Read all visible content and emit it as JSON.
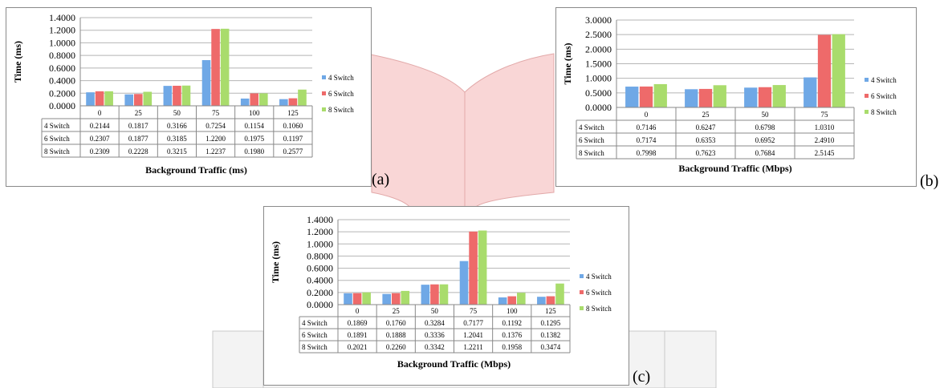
{
  "colors": {
    "4 Switch": "#6fa8e6",
    "6 Switch": "#ee6a6a",
    "8 Switch": "#a9dc6c",
    "grid": "#b5b5b5",
    "connector": "#f9d6d6"
  },
  "panel_labels": {
    "a": "(a)",
    "b": "(b)",
    "c": "(c)"
  },
  "chart_data": [
    {
      "id": "a",
      "type": "bar",
      "ylabel": "Time (ms)",
      "xlabel": "Background Traffic (ms)",
      "ylim": [
        0,
        1.4
      ],
      "yticks": [
        "0.0000",
        "0.2000",
        "0.4000",
        "0.6000",
        "0.8000",
        "1.0000",
        "1.2000",
        "1.4000"
      ],
      "grid": true,
      "legend_position": "right",
      "categories": [
        "0",
        "25",
        "50",
        "75",
        "100",
        "125"
      ],
      "series": [
        {
          "name": "4 Switch",
          "values": [
            0.2144,
            0.1817,
            0.3166,
            0.7254,
            0.1154,
            0.106
          ],
          "labels": [
            "0.2144",
            "0.1817",
            "0.3166",
            "0.7254",
            "0.1154",
            "0.1060"
          ]
        },
        {
          "name": "6 Switch",
          "values": [
            0.2307,
            0.1877,
            0.3185,
            1.22,
            0.1975,
            0.1197
          ],
          "labels": [
            "0.2307",
            "0.1877",
            "0.3185",
            "1.2200",
            "0.1975",
            "0.1197"
          ]
        },
        {
          "name": "8 Switch",
          "values": [
            0.2309,
            0.2228,
            0.3215,
            1.2237,
            0.198,
            0.2577
          ],
          "labels": [
            "0.2309",
            "0.2228",
            "0.3215",
            "1.2237",
            "0.1980",
            "0.2577"
          ]
        }
      ]
    },
    {
      "id": "b",
      "type": "bar",
      "ylabel": "Time (ms)",
      "xlabel": "Background Traffic (Mbps)",
      "ylim": [
        0,
        3.0
      ],
      "yticks": [
        "0.0000",
        "0.5000",
        "1.0000",
        "1.5000",
        "2.0000",
        "2.5000",
        "3.0000"
      ],
      "grid": true,
      "legend_position": "right",
      "categories": [
        "0",
        "25",
        "50",
        "75"
      ],
      "series": [
        {
          "name": "4 Switch",
          "values": [
            0.7146,
            0.6247,
            0.6798,
            1.031
          ],
          "labels": [
            "0.7146",
            "0.6247",
            "0.6798",
            "1.0310"
          ]
        },
        {
          "name": "6 Switch",
          "values": [
            0.7174,
            0.6353,
            0.6952,
            2.491
          ],
          "labels": [
            "0.7174",
            "0.6353",
            "0.6952",
            "2.4910"
          ]
        },
        {
          "name": "8 Switch",
          "values": [
            0.7998,
            0.7623,
            0.7684,
            2.5145
          ],
          "labels": [
            "0.7998",
            "0.7623",
            "0.7684",
            "2.5145"
          ]
        }
      ]
    },
    {
      "id": "c",
      "type": "bar",
      "ylabel": "Time (ms)",
      "xlabel": "Background Traffic (Mbps)",
      "ylim": [
        0,
        1.4
      ],
      "yticks": [
        "0.0000",
        "0.2000",
        "0.4000",
        "0.6000",
        "0.8000",
        "1.0000",
        "1.2000",
        "1.4000"
      ],
      "grid": true,
      "legend_position": "right",
      "categories": [
        "0",
        "25",
        "50",
        "75",
        "100",
        "125"
      ],
      "series": [
        {
          "name": "4 Switch",
          "values": [
            0.1869,
            0.176,
            0.3284,
            0.7177,
            0.1192,
            0.1295
          ],
          "labels": [
            "0.1869",
            "0.1760",
            "0.3284",
            "0.7177",
            "0.1192",
            "0.1295"
          ]
        },
        {
          "name": "6 Switch",
          "values": [
            0.1891,
            0.1888,
            0.3336,
            1.2041,
            0.1376,
            0.1382
          ],
          "labels": [
            "0.1891",
            "0.1888",
            "0.3336",
            "1.2041",
            "0.1376",
            "0.1382"
          ]
        },
        {
          "name": "8 Switch",
          "values": [
            0.2021,
            0.226,
            0.3342,
            1.2211,
            0.1958,
            0.3474
          ],
          "labels": [
            "0.2021",
            "0.2260",
            "0.3342",
            "1.2211",
            "0.1958",
            "0.3474"
          ]
        }
      ]
    }
  ]
}
